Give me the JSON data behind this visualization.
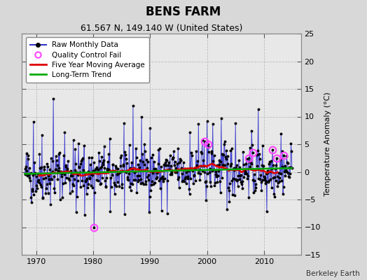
{
  "title": "BENS FARM",
  "subtitle": "61.567 N, 149.140 W (United States)",
  "ylabel": "Temperature Anomaly (°C)",
  "credit": "Berkeley Earth",
  "xlim": [
    1967.5,
    2016.5
  ],
  "ylim": [
    -15,
    25
  ],
  "yticks": [
    -15,
    -10,
    -5,
    0,
    5,
    10,
    15,
    20,
    25
  ],
  "xticks": [
    1970,
    1980,
    1990,
    2000,
    2010
  ],
  "bg_color": "#d8d8d8",
  "plot_bg_color": "#e8e8e8",
  "raw_color": "#3333cc",
  "raw_marker_color": "#000000",
  "qc_color": "#ff44ff",
  "ma_color": "#dd0000",
  "trend_color": "#00aa00",
  "seed": 42
}
